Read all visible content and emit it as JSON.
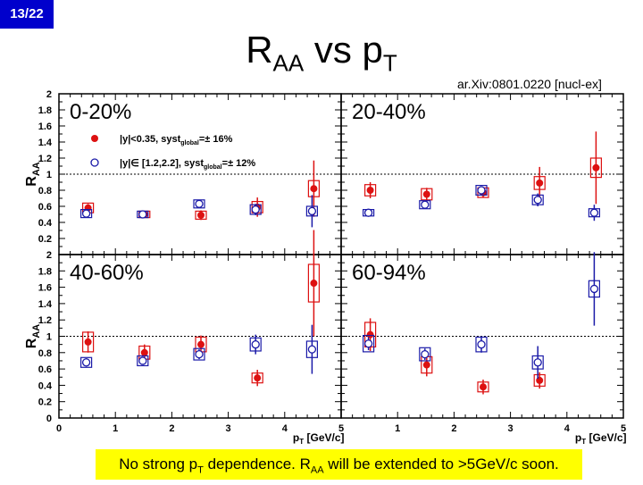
{
  "slide": {
    "number": "13/22",
    "title_main": "R",
    "title_sub": "AA",
    "title_mid": " vs p",
    "title_sub2": "T",
    "reference": "ar.Xiv:0801.0220 [nucl-ex]",
    "footer_a": "No strong p",
    "footer_sub1": "T",
    "footer_b": " dependence. R",
    "footer_sub2": "AA",
    "footer_c": " will be extended to >5GeV/c soon."
  },
  "colors": {
    "series1": "#dd1111",
    "series2": "#1a1aa8",
    "slide_number_bg": "#0000cc",
    "footer_bg": "#ffff00"
  },
  "chart_data": {
    "type": "scatter",
    "ylabel": "RAA",
    "xlabel": "pT [GeV/c]",
    "xlim": [
      0,
      5
    ],
    "ylim": [
      0,
      2
    ],
    "x_ticks": [
      "0",
      "1",
      "2",
      "3",
      "4",
      "5"
    ],
    "y_ticks_top": [
      "0.2",
      "0.4",
      "0.6",
      "0.8",
      "1",
      "1.2",
      "1.4",
      "1.6",
      "1.8",
      "2"
    ],
    "y_ticks_bottom": [
      "0",
      "0.2",
      "0.4",
      "0.6",
      "0.8",
      "1",
      "1.2",
      "1.4",
      "1.6",
      "1.8",
      "2"
    ],
    "reference_line": 1,
    "legend": [
      {
        "main": "|y|<0.35, syst",
        "sub": "global",
        "tail": "=± 16%"
      },
      {
        "main": "|y|∈ [1.2,2.2], syst",
        "sub": "global",
        "tail": "=± 12%"
      }
    ],
    "panels": [
      {
        "label": "0-20%",
        "series": [
          {
            "points": [
              {
                "x": 0.5,
                "y": 0.58,
                "err": 0.05,
                "sys": 0.06
              },
              {
                "x": 1.5,
                "y": 0.5,
                "err": 0.04,
                "sys": 0.04
              },
              {
                "x": 2.5,
                "y": 0.49,
                "err": 0.06,
                "sys": 0.05
              },
              {
                "x": 3.5,
                "y": 0.59,
                "err": 0.12,
                "sys": 0.07
              },
              {
                "x": 4.5,
                "y": 0.82,
                "err": 0.35,
                "sys": 0.1
              }
            ]
          },
          {
            "points": [
              {
                "x": 0.5,
                "y": 0.51,
                "err": 0.03,
                "sys": 0.05
              },
              {
                "x": 1.5,
                "y": 0.5,
                "err": 0.03,
                "sys": 0.04
              },
              {
                "x": 2.5,
                "y": 0.63,
                "err": 0.04,
                "sys": 0.05
              },
              {
                "x": 3.5,
                "y": 0.56,
                "err": 0.07,
                "sys": 0.06
              },
              {
                "x": 4.5,
                "y": 0.54,
                "err": 0.2,
                "sys": 0.06
              }
            ]
          }
        ]
      },
      {
        "label": "20-40%",
        "series": [
          {
            "points": [
              {
                "x": 0.5,
                "y": 0.8,
                "err": 0.1,
                "sys": 0.07
              },
              {
                "x": 1.5,
                "y": 0.75,
                "err": 0.08,
                "sys": 0.07
              },
              {
                "x": 2.5,
                "y": 0.77,
                "err": 0.06,
                "sys": 0.06
              },
              {
                "x": 3.5,
                "y": 0.89,
                "err": 0.2,
                "sys": 0.08
              },
              {
                "x": 4.5,
                "y": 1.08,
                "err": 0.45,
                "sys": 0.12
              }
            ]
          },
          {
            "points": [
              {
                "x": 0.5,
                "y": 0.52,
                "err": 0.04,
                "sys": 0.04
              },
              {
                "x": 1.5,
                "y": 0.62,
                "err": 0.04,
                "sys": 0.05
              },
              {
                "x": 2.5,
                "y": 0.8,
                "err": 0.05,
                "sys": 0.06
              },
              {
                "x": 3.5,
                "y": 0.68,
                "err": 0.08,
                "sys": 0.06
              },
              {
                "x": 4.5,
                "y": 0.52,
                "err": 0.1,
                "sys": 0.05
              }
            ]
          }
        ]
      },
      {
        "label": "40-60%",
        "series": [
          {
            "points": [
              {
                "x": 0.5,
                "y": 0.93,
                "err": 0.13,
                "sys": 0.12
              },
              {
                "x": 1.5,
                "y": 0.8,
                "err": 0.1,
                "sys": 0.08
              },
              {
                "x": 2.5,
                "y": 0.9,
                "err": 0.11,
                "sys": 0.09
              },
              {
                "x": 3.5,
                "y": 0.49,
                "err": 0.1,
                "sys": 0.06
              },
              {
                "x": 4.5,
                "y": 1.65,
                "err": 0.65,
                "sys": 0.23
              }
            ]
          },
          {
            "points": [
              {
                "x": 0.5,
                "y": 0.68,
                "err": 0.05,
                "sys": 0.06
              },
              {
                "x": 1.5,
                "y": 0.7,
                "err": 0.05,
                "sys": 0.06
              },
              {
                "x": 2.5,
                "y": 0.78,
                "err": 0.06,
                "sys": 0.07
              },
              {
                "x": 3.5,
                "y": 0.9,
                "err": 0.12,
                "sys": 0.08
              },
              {
                "x": 4.5,
                "y": 0.84,
                "err": 0.3,
                "sys": 0.1
              }
            ]
          }
        ]
      },
      {
        "label": "60-94%",
        "series": [
          {
            "points": [
              {
                "x": 0.5,
                "y": 1.02,
                "err": 0.2,
                "sys": 0.15
              },
              {
                "x": 1.5,
                "y": 0.65,
                "err": 0.14,
                "sys": 0.1
              },
              {
                "x": 2.5,
                "y": 0.38,
                "err": 0.09,
                "sys": 0.06
              },
              {
                "x": 3.5,
                "y": 0.46,
                "err": 0.1,
                "sys": 0.07
              }
            ]
          },
          {
            "points": [
              {
                "x": 0.5,
                "y": 0.91,
                "err": 0.08,
                "sys": 0.1
              },
              {
                "x": 1.5,
                "y": 0.78,
                "err": 0.07,
                "sys": 0.08
              },
              {
                "x": 2.5,
                "y": 0.9,
                "err": 0.1,
                "sys": 0.09
              },
              {
                "x": 3.5,
                "y": 0.68,
                "err": 0.2,
                "sys": 0.08
              },
              {
                "x": 4.5,
                "y": 1.58,
                "err": 0.45,
                "sys": 0.1
              }
            ]
          }
        ]
      }
    ]
  }
}
